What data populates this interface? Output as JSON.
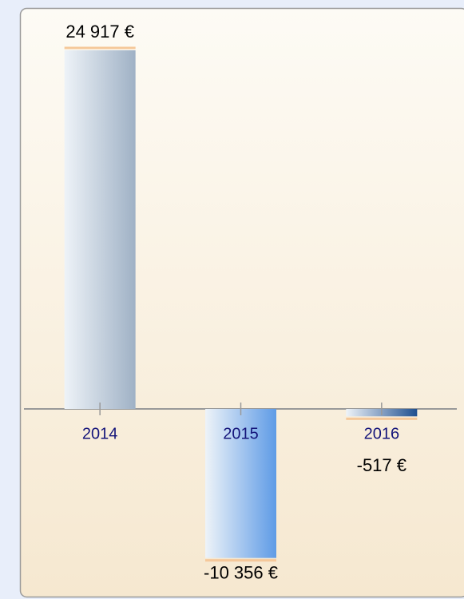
{
  "chart_data": {
    "type": "bar",
    "categories": [
      "2014",
      "2015",
      "2016"
    ],
    "values": [
      24917,
      -10356,
      -517
    ],
    "value_labels": [
      "24 917 €",
      "-10 356 €",
      "-517 €"
    ],
    "colors": [
      "#9fb1c5",
      "#5e9be6",
      "#1f4f8f"
    ]
  }
}
